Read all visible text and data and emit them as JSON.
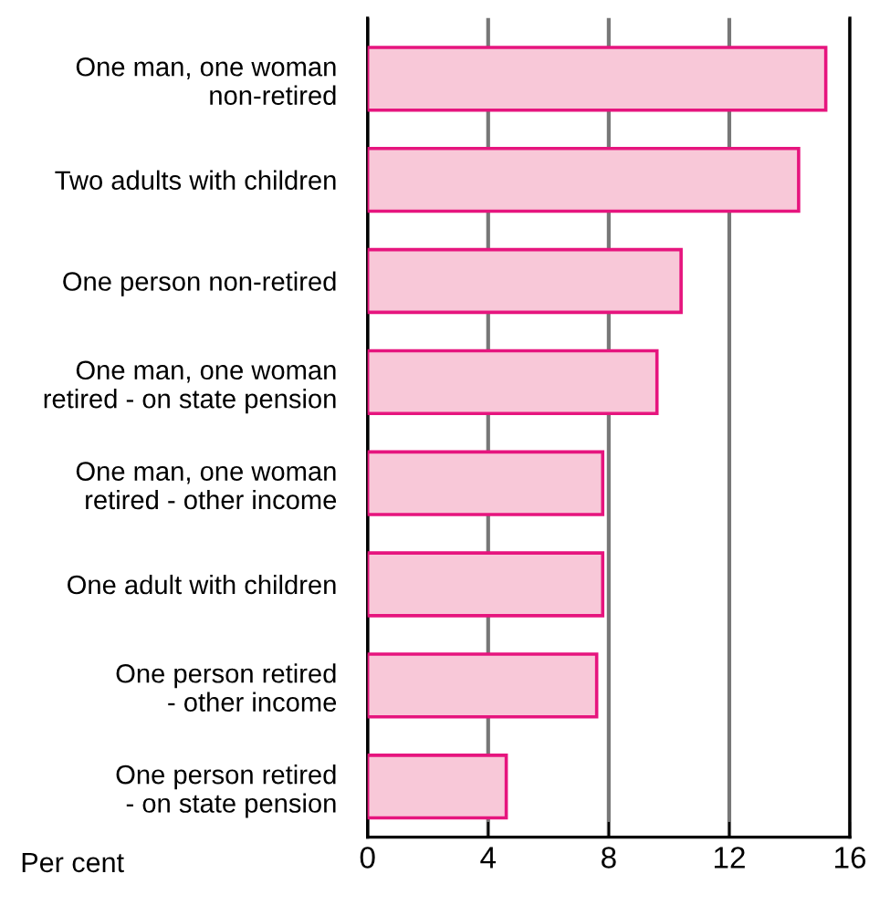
{
  "chart_data": {
    "type": "bar",
    "orientation": "horizontal",
    "xlabel": "Per cent",
    "categories": [
      "One man, one woman\nnon-retired",
      "Two adults with children",
      "One person non-retired",
      "One man, one woman\nretired - on state pension",
      "One man, one woman\nretired - other income",
      "One adult with children",
      "One person retired\n- other income",
      "One person retired\n- on state pension"
    ],
    "series": [
      {
        "color": "#f8c8d8",
        "values": [
          15.2,
          14.3,
          10.4,
          9.6,
          7.8,
          7.8,
          7.6,
          4.6
        ]
      }
    ],
    "xlim": [
      0,
      16
    ],
    "xticks": [
      0,
      4,
      8,
      12,
      16
    ],
    "grid": "x"
  }
}
